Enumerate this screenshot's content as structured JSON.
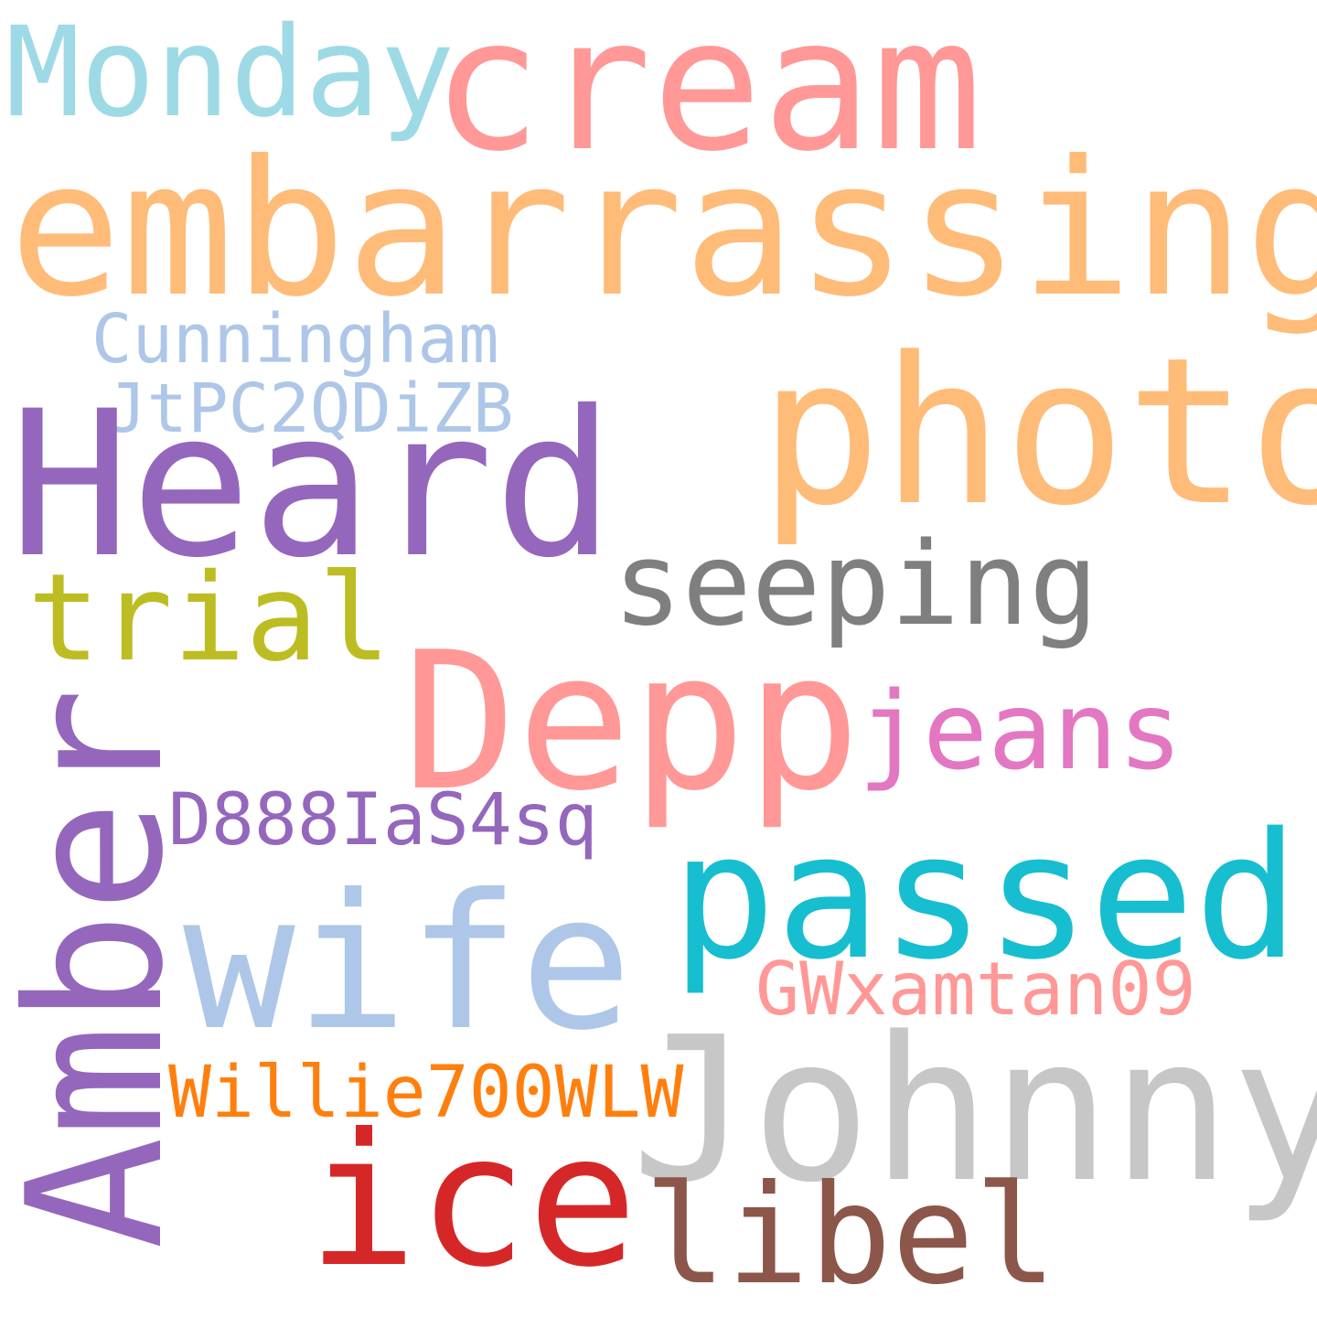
{
  "words": {
    "monday": {
      "text": "Monday",
      "color": "#9edae5"
    },
    "cream": {
      "text": "cream",
      "color": "#ff9896"
    },
    "embarrassing": {
      "text": "embarrassing",
      "color": "#ffbb78"
    },
    "cunningham": {
      "text": "Cunningham",
      "color": "#aec7e8"
    },
    "jtpc": {
      "text": "JtPC2QDiZB",
      "color": "#aec7e8"
    },
    "photo": {
      "text": "photo",
      "color": "#ffbb78"
    },
    "heard": {
      "text": "Heard",
      "color": "#9467bd"
    },
    "seeping": {
      "text": "seeping",
      "color": "#7f7f7f"
    },
    "trial": {
      "text": "trial",
      "color": "#bcbd22"
    },
    "depp": {
      "text": "Depp",
      "color": "#ff9896"
    },
    "jeans": {
      "text": "jeans",
      "color": "#e377c2"
    },
    "amber": {
      "text": "Amber",
      "color": "#9467bd"
    },
    "d888": {
      "text": "D888IaS4sq",
      "color": "#9467bd"
    },
    "passed": {
      "text": "passed",
      "color": "#17becf"
    },
    "wife": {
      "text": "wife",
      "color": "#aec7e8"
    },
    "gwx": {
      "text": "GWxamtan09",
      "color": "#ff9896"
    },
    "johnny": {
      "text": "Johnny",
      "color": "#c7c7c7"
    },
    "willie": {
      "text": "Willie700WLW",
      "color": "#ff7f0e"
    },
    "ice": {
      "text": "ice",
      "color": "#d62728"
    },
    "libel": {
      "text": "libel",
      "color": "#8c564b"
    }
  }
}
